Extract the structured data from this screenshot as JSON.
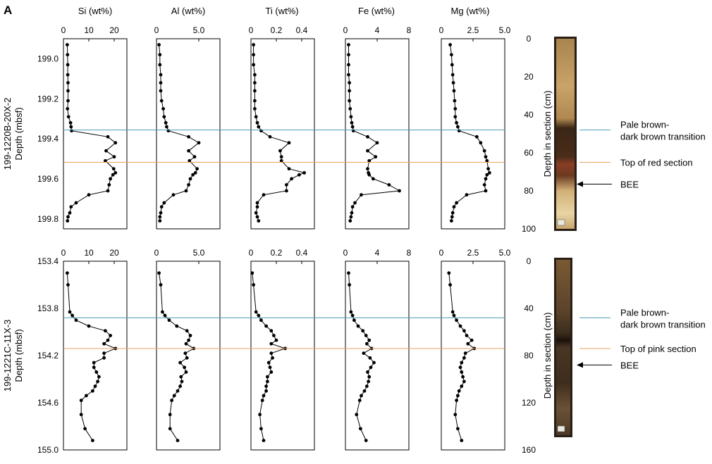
{
  "panel_letter": "A",
  "elements": [
    "Si (wt%)",
    "Al (wt%)",
    "Ti (wt%)",
    "Fe (wt%)",
    "Mg (wt%)"
  ],
  "colors": {
    "blue_line": "#4e9bb8",
    "orange_line": "#e8a35e",
    "data": "#000000",
    "core_dark": "#2a1f15"
  },
  "icons": [
    "core-photo-image",
    "arrow-left-icon"
  ],
  "chart_data": [
    {
      "type": "line",
      "core": "199-1220B-20X-2",
      "ylabel_left": "199-1220B-20X-2\nDepth (mbsf)",
      "ylabel_right": "Depth in section (cm)",
      "yticks_left": [
        "199.0",
        "199.2",
        "199.4",
        "199.6",
        "199.8"
      ],
      "yticks_right": [
        "0",
        "20",
        "40",
        "60",
        "80",
        "100"
      ],
      "ylim_mbsf": [
        198.9,
        199.85
      ],
      "ylim_section_cm": [
        0,
        100
      ],
      "xticks": [
        [
          "0",
          "10",
          "20"
        ],
        [
          "0",
          "5.0"
        ],
        [
          "0",
          "0.2",
          "0.4"
        ],
        [
          "0",
          "4",
          "8"
        ],
        [
          "0",
          "2.5",
          "5.0"
        ]
      ],
      "xlim": [
        [
          0,
          25
        ],
        [
          0,
          7.5
        ],
        [
          0,
          0.5
        ],
        [
          0,
          8
        ],
        [
          0,
          5
        ]
      ],
      "depth_mbsf": [
        198.93,
        198.98,
        199.03,
        199.08,
        199.12,
        199.16,
        199.21,
        199.25,
        199.29,
        199.32,
        199.34,
        199.36,
        199.39,
        199.42,
        199.46,
        199.49,
        199.51,
        199.55,
        199.57,
        199.58,
        199.6,
        199.63,
        199.66,
        199.68,
        199.72,
        199.74,
        199.77,
        199.79,
        199.81
      ],
      "series": [
        {
          "name": "Si (wt%)",
          "values": [
            1.5,
            1.6,
            1.7,
            1.7,
            1.8,
            1.8,
            1.8,
            1.6,
            2.0,
            2.8,
            3.0,
            3.2,
            17.5,
            20.5,
            16.8,
            20.0,
            16.5,
            19.8,
            20.5,
            19.5,
            18.5,
            18.0,
            17.5,
            10.0,
            5.0,
            3.0,
            2.5,
            1.8,
            1.6
          ]
        },
        {
          "name": "Al (wt%)",
          "values": [
            0.3,
            0.4,
            0.4,
            0.5,
            0.5,
            0.5,
            0.6,
            0.8,
            0.9,
            1.1,
            1.2,
            1.4,
            3.8,
            5.0,
            3.8,
            4.5,
            3.9,
            4.8,
            4.6,
            4.3,
            4.0,
            3.8,
            3.5,
            2.0,
            0.9,
            0.6,
            0.5,
            0.4,
            0.4
          ]
        },
        {
          "name": "Ti (wt%)",
          "values": [
            0.02,
            0.02,
            0.02,
            0.03,
            0.03,
            0.03,
            0.03,
            0.03,
            0.04,
            0.05,
            0.06,
            0.08,
            0.15,
            0.3,
            0.23,
            0.24,
            0.24,
            0.3,
            0.42,
            0.38,
            0.32,
            0.28,
            0.28,
            0.1,
            0.05,
            0.05,
            0.04,
            0.05,
            0.06
          ]
        },
        {
          "name": "Fe (wt%)",
          "values": [
            0.4,
            0.4,
            0.4,
            0.4,
            0.5,
            0.5,
            0.5,
            0.6,
            0.7,
            0.8,
            0.9,
            1.0,
            2.8,
            4.0,
            2.8,
            3.8,
            3.0,
            2.8,
            2.9,
            3.0,
            3.5,
            5.5,
            6.8,
            2.0,
            1.2,
            0.9,
            0.8,
            0.7,
            0.6
          ]
        },
        {
          "name": "Mg (wt%)",
          "values": [
            0.7,
            0.8,
            0.85,
            0.9,
            0.95,
            1.0,
            1.05,
            1.1,
            1.1,
            1.2,
            1.3,
            1.4,
            2.8,
            3.1,
            3.4,
            3.5,
            3.6,
            3.7,
            3.8,
            3.6,
            3.5,
            3.4,
            3.5,
            2.0,
            1.2,
            1.0,
            0.9,
            0.85,
            0.8
          ]
        }
      ],
      "lines": [
        {
          "depth_section_cm": 48,
          "label": "Pale brown-\ndark brown transition"
        },
        {
          "depth_section_cm": 65,
          "label": "Top of red section"
        }
      ],
      "annotation": {
        "depth_section_cm": 76.5,
        "label": "BEE"
      }
    },
    {
      "type": "line",
      "core": "199-1221C-11X-3",
      "ylabel_left": "199-1221C-11X-3\nDepth (mbsf)",
      "ylabel_right": "Depth in section (cm)",
      "yticks_left": [
        "153.4",
        "153.8",
        "154.2",
        "154.6",
        "155.0"
      ],
      "yticks_right": [
        "0",
        "40",
        "80",
        "120",
        "160"
      ],
      "ylim_mbsf": [
        153.4,
        155.0
      ],
      "ylim_section_cm": [
        0,
        160
      ],
      "xticks": [
        [
          "0",
          "10",
          "20"
        ],
        [
          "0",
          "5.0"
        ],
        [
          "0",
          "0.2",
          "0.4"
        ],
        [
          "0",
          "4",
          "8"
        ],
        [
          "0",
          "2.5",
          "5.0"
        ]
      ],
      "xlim": [
        [
          0,
          25
        ],
        [
          0,
          7.5
        ],
        [
          0,
          0.5
        ],
        [
          0,
          8
        ],
        [
          0,
          5
        ]
      ],
      "depth_mbsf": [
        153.5,
        153.6,
        153.83,
        153.86,
        153.9,
        153.95,
        153.99,
        154.03,
        154.07,
        154.1,
        154.14,
        154.18,
        154.22,
        154.26,
        154.3,
        154.34,
        154.38,
        154.42,
        154.46,
        154.5,
        154.54,
        154.58,
        154.7,
        154.82,
        154.92
      ],
      "series": [
        {
          "name": "Si (wt%)",
          "values": [
            1.5,
            1.8,
            2.5,
            3.5,
            5.0,
            10.0,
            16.5,
            18.5,
            17.5,
            16.0,
            20.5,
            16.0,
            16.0,
            12.0,
            12.0,
            13.0,
            14.0,
            13.5,
            12.5,
            11.5,
            9.0,
            7.0,
            7.0,
            8.5,
            11.5
          ]
        },
        {
          "name": "Al (wt%)",
          "values": [
            0.3,
            0.5,
            0.7,
            1.0,
            1.5,
            2.4,
            3.6,
            4.0,
            3.8,
            3.5,
            4.4,
            3.4,
            3.6,
            2.8,
            3.3,
            3.5,
            2.9,
            3.0,
            2.8,
            2.5,
            2.1,
            1.8,
            1.6,
            1.6,
            2.5
          ]
        },
        {
          "name": "Ti (wt%)",
          "values": [
            0.01,
            0.02,
            0.04,
            0.06,
            0.08,
            0.12,
            0.16,
            0.18,
            0.2,
            0.16,
            0.27,
            0.16,
            0.17,
            0.14,
            0.15,
            0.16,
            0.13,
            0.13,
            0.12,
            0.12,
            0.1,
            0.09,
            0.07,
            0.08,
            0.1
          ]
        },
        {
          "name": "Fe (wt%)",
          "values": [
            0.4,
            0.5,
            0.7,
            0.9,
            1.1,
            1.6,
            2.2,
            2.6,
            3.0,
            2.7,
            3.3,
            2.3,
            3.1,
            3.6,
            3.2,
            2.8,
            3.0,
            2.9,
            2.7,
            2.4,
            2.0,
            1.8,
            1.4,
            1.9,
            2.6
          ]
        },
        {
          "name": "Mg (wt%)",
          "values": [
            0.6,
            0.7,
            0.9,
            1.0,
            1.2,
            1.5,
            1.8,
            2.0,
            2.4,
            2.1,
            2.6,
            1.9,
            1.8,
            1.6,
            1.5,
            1.6,
            1.7,
            1.8,
            1.6,
            1.4,
            1.3,
            1.2,
            1.1,
            1.3,
            1.6
          ]
        }
      ],
      "lines": [
        {
          "depth_section_cm": 48,
          "label": "Pale brown-\ndark brown transition"
        },
        {
          "depth_section_cm": 74,
          "label": "Top of pink section"
        }
      ],
      "annotation": {
        "depth_section_cm": 88,
        "label": "BEE"
      }
    }
  ]
}
